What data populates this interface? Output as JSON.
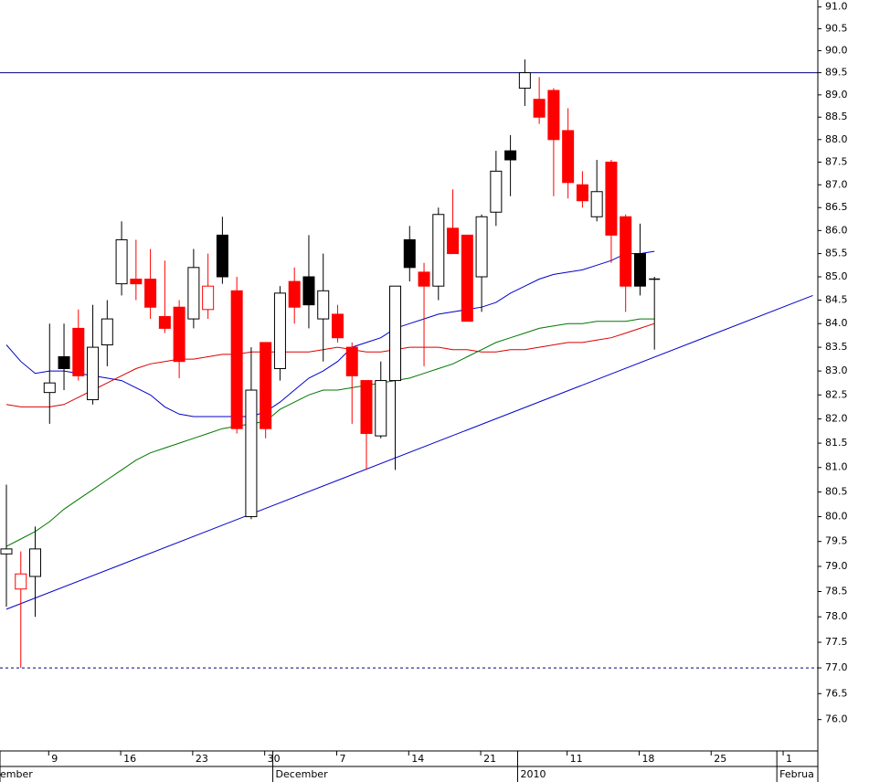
{
  "chart_data": {
    "type": "candlestick",
    "log_scale": true,
    "grid": true,
    "ylim": [
      75.4,
      91.16
    ],
    "yticks": [
      {
        "value": 76,
        "label": "76.0"
      },
      {
        "value": 76.5,
        "label": "76.5"
      },
      {
        "value": 77,
        "label": "77.0"
      },
      {
        "value": 77.5,
        "label": "77.5"
      },
      {
        "value": 78,
        "label": "78.0"
      },
      {
        "value": 78.5,
        "label": "78.5"
      },
      {
        "value": 79,
        "label": "79.0"
      },
      {
        "value": 79.5,
        "label": "79.5"
      },
      {
        "value": 80,
        "label": "80.0"
      },
      {
        "value": 80.5,
        "label": "80.5"
      },
      {
        "value": 81,
        "label": "81.0"
      },
      {
        "value": 81.5,
        "label": "81.5"
      },
      {
        "value": 82,
        "label": "82.0"
      },
      {
        "value": 82.5,
        "label": "82.5"
      },
      {
        "value": 83,
        "label": "83.0"
      },
      {
        "value": 83.5,
        "label": "83.5"
      },
      {
        "value": 84,
        "label": "84.0"
      },
      {
        "value": 84.5,
        "label": "84.5"
      },
      {
        "value": 85,
        "label": "85.0"
      },
      {
        "value": 85.5,
        "label": "85.5"
      },
      {
        "value": 86,
        "label": "86.0"
      },
      {
        "value": 86.5,
        "label": "86.5"
      },
      {
        "value": 87,
        "label": "87.0"
      },
      {
        "value": 87.5,
        "label": "87.5"
      },
      {
        "value": 88,
        "label": "88.0"
      },
      {
        "value": 88.5,
        "label": "88.5"
      },
      {
        "value": 89,
        "label": "89.0"
      },
      {
        "value": 89.5,
        "label": "89.5"
      },
      {
        "value": 90,
        "label": "90.0"
      },
      {
        "value": 90.5,
        "label": "90.5"
      },
      {
        "value": 91,
        "label": "91.0"
      }
    ],
    "categories": [
      null,
      null,
      null,
      "9",
      null,
      null,
      null,
      null,
      "16",
      null,
      null,
      null,
      null,
      "23",
      null,
      null,
      null,
      null,
      "30",
      null,
      null,
      null,
      null,
      "7",
      null,
      null,
      null,
      null,
      "14",
      null,
      null,
      null,
      null,
      "21",
      null,
      null,
      null,
      null,
      null,
      "11",
      null,
      null,
      null,
      null,
      "18",
      null,
      null,
      null,
      null,
      "25",
      null,
      null,
      null,
      null,
      "1",
      null,
      null
    ],
    "month_categories": [
      "ember",
      null,
      null,
      null,
      null,
      null,
      null,
      null,
      null,
      null,
      null,
      null,
      null,
      null,
      null,
      null,
      null,
      null,
      null,
      "December",
      null,
      null,
      null,
      null,
      null,
      null,
      null,
      null,
      null,
      null,
      null,
      null,
      null,
      null,
      null,
      null,
      "2010",
      null,
      null,
      null,
      null,
      null,
      null,
      null,
      null,
      null,
      null,
      null,
      null,
      null,
      null,
      null,
      null,
      null,
      "Februa",
      null,
      null
    ],
    "open": [
      79.25,
      78.55,
      78.8,
      82.55,
      83.3,
      83.9,
      82.4,
      83.55,
      84.85,
      84.95,
      84.95,
      84.15,
      84.35,
      84.1,
      84.3,
      85.9,
      84.7,
      80.0,
      83.6,
      83.05,
      84.9,
      85.0,
      84.1,
      84.2,
      83.5,
      82.8,
      81.65,
      82.8,
      85.8,
      85.1,
      84.8,
      86.05,
      85.9,
      85.0,
      86.4,
      87.75,
      89.15,
      88.9,
      89.1,
      88.2,
      87.0,
      86.3,
      87.5,
      86.3,
      85.5,
      84.95,
      null,
      null,
      null,
      null,
      null,
      null,
      null,
      null,
      null,
      null,
      null
    ],
    "high": [
      80.65,
      79.3,
      79.8,
      84.0,
      84.0,
      84.3,
      84.4,
      84.5,
      86.2,
      85.8,
      85.6,
      85.35,
      84.5,
      85.6,
      85.5,
      86.3,
      85.0,
      83.5,
      83.6,
      84.8,
      85.2,
      85.9,
      85.5,
      84.4,
      83.6,
      82.8,
      83.2,
      84.8,
      86.1,
      85.3,
      86.5,
      86.9,
      85.9,
      86.35,
      87.75,
      88.1,
      89.8,
      89.4,
      89.15,
      88.7,
      87.3,
      87.55,
      87.55,
      86.35,
      86.15,
      85.0,
      null,
      null,
      null,
      null,
      null,
      null,
      null,
      null,
      null,
      null,
      null
    ],
    "low": [
      78.2,
      77.0,
      78.0,
      81.9,
      82.6,
      82.8,
      82.3,
      83.1,
      84.6,
      84.5,
      84.1,
      83.8,
      82.85,
      83.9,
      84.1,
      84.85,
      81.7,
      79.95,
      81.6,
      82.8,
      84.0,
      83.9,
      83.2,
      83.6,
      81.9,
      80.95,
      81.6,
      80.95,
      84.9,
      83.1,
      84.5,
      85.5,
      84.05,
      84.25,
      86.1,
      86.75,
      88.75,
      88.35,
      86.75,
      86.7,
      86.5,
      86.2,
      85.3,
      84.25,
      84.6,
      83.45,
      null,
      null,
      null,
      null,
      null,
      null,
      null,
      null,
      null,
      null,
      null
    ],
    "close": [
      79.35,
      78.85,
      79.35,
      82.75,
      83.05,
      82.9,
      83.5,
      84.1,
      85.8,
      84.85,
      84.35,
      83.9,
      83.2,
      85.2,
      84.8,
      85.0,
      81.8,
      82.6,
      81.8,
      84.65,
      84.35,
      84.4,
      84.7,
      83.7,
      82.9,
      81.7,
      82.8,
      84.8,
      85.2,
      84.8,
      86.35,
      85.5,
      84.05,
      86.3,
      87.3,
      87.55,
      89.5,
      88.5,
      88.0,
      87.05,
      86.65,
      86.85,
      85.9,
      84.8,
      84.8,
      84.95,
      null,
      null,
      null,
      null,
      null,
      null,
      null,
      null,
      null,
      null,
      null
    ],
    "fills": [
      "#ffffff",
      "#ffffff",
      "#ffffff",
      "#ffffff",
      "#000000",
      "#ff0000",
      "#ffffff",
      "#ffffff",
      "#ffffff",
      "#ff0000",
      "#ff0000",
      "#ff0000",
      "#ff0000",
      "#ffffff",
      "#ffffff",
      "#000000",
      "#ff0000",
      "#ffffff",
      "#ff0000",
      "#ffffff",
      "#ff0000",
      "#000000",
      "#ffffff",
      "#ff0000",
      "#ff0000",
      "#ff0000",
      "#ffffff",
      "#ffffff",
      "#000000",
      "#ff0000",
      "#ffffff",
      "#ff0000",
      "#ff0000",
      "#ffffff",
      "#ffffff",
      "#000000",
      "#ffffff",
      "#ff0000",
      "#ff0000",
      "#ff0000",
      "#ff0000",
      "#ffffff",
      "#ff0000",
      "#ff0000",
      "#000000",
      "#000000",
      null,
      null,
      null,
      null,
      null,
      null,
      null,
      null,
      null,
      null,
      null
    ],
    "strokes": [
      "#000000",
      "#ff0000",
      "#000000",
      "#000000",
      "#000000",
      "#ff0000",
      "#000000",
      "#000000",
      "#000000",
      "#ff0000",
      "#ff0000",
      "#ff0000",
      "#ff0000",
      "#000000",
      "#ff0000",
      "#000000",
      "#ff0000",
      "#000000",
      "#ff0000",
      "#000000",
      "#ff0000",
      "#000000",
      "#000000",
      "#ff0000",
      "#ff0000",
      "#ff0000",
      "#000000",
      "#000000",
      "#000000",
      "#ff0000",
      "#000000",
      "#ff0000",
      "#ff0000",
      "#000000",
      "#000000",
      "#000000",
      "#000000",
      "#ff0000",
      "#ff0000",
      "#ff0000",
      "#ff0000",
      "#000000",
      "#ff0000",
      "#ff0000",
      "#000000",
      "#000000",
      null,
      null,
      null,
      null,
      null,
      null,
      null,
      null,
      null,
      null,
      null
    ],
    "lines": [
      {
        "color": "#0000cc",
        "values": [
          83.55,
          83.2,
          82.95,
          83.0,
          83.0,
          82.95,
          82.9,
          82.85,
          82.8,
          82.65,
          82.5,
          82.25,
          82.1,
          82.05,
          82.05,
          82.05,
          82.05,
          82.05,
          82.15,
          82.35,
          82.6,
          82.85,
          83.0,
          83.2,
          83.5,
          83.6,
          83.7,
          83.9,
          84.0,
          84.1,
          84.2,
          84.25,
          84.3,
          84.35,
          84.45,
          84.65,
          84.8,
          84.95,
          85.05,
          85.1,
          85.15,
          85.25,
          85.35,
          85.5,
          85.5,
          85.55,
          null,
          null,
          null,
          null,
          null,
          null,
          null,
          null,
          null,
          null,
          null
        ]
      },
      {
        "color": "#dd0000",
        "values": [
          82.3,
          82.25,
          82.25,
          82.25,
          82.3,
          82.45,
          82.6,
          82.75,
          82.9,
          83.05,
          83.15,
          83.2,
          83.25,
          83.25,
          83.3,
          83.35,
          83.35,
          83.4,
          83.4,
          83.4,
          83.4,
          83.4,
          83.45,
          83.5,
          83.45,
          83.4,
          83.4,
          83.45,
          83.5,
          83.5,
          83.5,
          83.45,
          83.45,
          83.4,
          83.4,
          83.45,
          83.45,
          83.5,
          83.55,
          83.6,
          83.6,
          83.65,
          83.7,
          83.8,
          83.9,
          84.0,
          null,
          null,
          null,
          null,
          null,
          null,
          null,
          null,
          null,
          null,
          null
        ]
      },
      {
        "color": "#007700",
        "values": [
          79.4,
          79.55,
          79.7,
          79.9,
          80.15,
          80.35,
          80.55,
          80.75,
          80.95,
          81.15,
          81.3,
          81.4,
          81.5,
          81.6,
          81.7,
          81.8,
          81.85,
          81.9,
          81.95,
          82.2,
          82.35,
          82.5,
          82.6,
          82.6,
          82.65,
          82.7,
          82.75,
          82.8,
          82.85,
          82.95,
          83.05,
          83.15,
          83.3,
          83.45,
          83.6,
          83.7,
          83.8,
          83.9,
          83.95,
          84.0,
          84.0,
          84.05,
          84.05,
          84.05,
          84.1,
          84.1,
          null,
          null,
          null,
          null,
          null,
          null,
          null,
          null,
          null,
          null,
          null
        ]
      }
    ],
    "trendline": {
      "color": "#0000cc",
      "values": [
        78.15,
        84.6
      ]
    },
    "hlines": [
      {
        "value": 89.5,
        "color": "#000080",
        "dashed": false
      },
      {
        "value": 77.0,
        "color": "#000080",
        "dashed": true
      }
    ]
  }
}
